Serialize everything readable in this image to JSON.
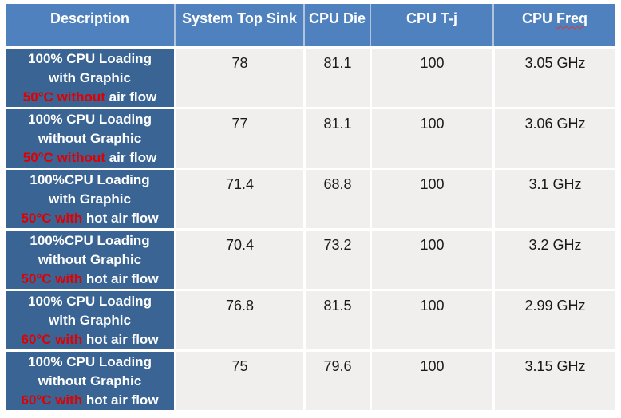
{
  "table": {
    "headers": {
      "description": "Description",
      "system_top_sink": "System Top Sink",
      "cpu_die": "CPU Die",
      "cpu_tj": "CPU T-j",
      "cpu_freq_prefix": "CPU",
      "cpu_freq_word": "Freq"
    },
    "rows": [
      {
        "desc_line1": "100% CPU Loading",
        "desc_line2": "with Graphic",
        "desc_red": "50°C without",
        "desc_rest": "air flow",
        "system_top_sink": "78",
        "cpu_die": "81.1",
        "cpu_tj": "100",
        "cpu_freq": "3.05 GHz"
      },
      {
        "desc_line1": "100% CPU Loading",
        "desc_line2": "without Graphic",
        "desc_red": "50°C without",
        "desc_rest": "air flow",
        "system_top_sink": "77",
        "cpu_die": "81.1",
        "cpu_tj": "100",
        "cpu_freq": "3.06 GHz"
      },
      {
        "desc_line1": "100%CPU Loading",
        "desc_line2": "with Graphic",
        "desc_red": "50°C with",
        "desc_rest": "hot air flow",
        "system_top_sink": "71.4",
        "cpu_die": "68.8",
        "cpu_tj": "100",
        "cpu_freq": "3.1 GHz"
      },
      {
        "desc_line1": "100%CPU Loading",
        "desc_line2": "without Graphic",
        "desc_red": "50°C with",
        "desc_rest": "hot air flow",
        "system_top_sink": "70.4",
        "cpu_die": "73.2",
        "cpu_tj": "100",
        "cpu_freq": "3.2 GHz"
      },
      {
        "desc_line1": "100% CPU Loading",
        "desc_line2": "with Graphic",
        "desc_red": "60°C with",
        "desc_rest": "hot air flow",
        "system_top_sink": "76.8",
        "cpu_die": "81.5",
        "cpu_tj": "100",
        "cpu_freq": "2.99 GHz"
      },
      {
        "desc_line1": "100% CPU Loading",
        "desc_line2": "without Graphic",
        "desc_red": "60°C with",
        "desc_rest": "hot air flow",
        "system_top_sink": "75",
        "cpu_die": "79.6",
        "cpu_tj": "100",
        "cpu_freq": "3.15 GHz"
      }
    ]
  },
  "colors": {
    "header_bg": "#4E81BD",
    "description_bg": "#3A6494",
    "data_cell_bg": "#F1EFED",
    "header_text": "#FFFFFF",
    "description_text": "#FFFFFF",
    "highlight_red": "#E00000",
    "data_text": "#1A1A1A",
    "header_divider": "#AFC3DA",
    "spellcheck_underline": "#D83A3A"
  }
}
